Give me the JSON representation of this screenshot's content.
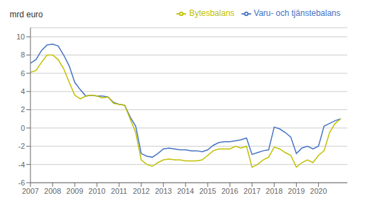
{
  "chart_data": {
    "type": "line",
    "ylabel": "mrd euro",
    "x": [
      2007.0,
      2007.25,
      2007.5,
      2007.75,
      2008.0,
      2008.25,
      2008.5,
      2008.75,
      2009.0,
      2009.25,
      2009.5,
      2009.75,
      2010.0,
      2010.25,
      2010.5,
      2010.75,
      2011.0,
      2011.25,
      2011.5,
      2011.75,
      2012.0,
      2012.25,
      2012.5,
      2012.75,
      2013.0,
      2013.25,
      2013.5,
      2013.75,
      2014.0,
      2014.25,
      2014.5,
      2014.75,
      2015.0,
      2015.25,
      2015.5,
      2015.75,
      2016.0,
      2016.25,
      2016.5,
      2016.75,
      2017.0,
      2017.25,
      2017.5,
      2017.75,
      2018.0,
      2018.25,
      2018.5,
      2018.75,
      2019.0,
      2019.25,
      2019.5,
      2019.75,
      2020.0,
      2020.25,
      2020.5,
      2020.75,
      2021.0
    ],
    "series": [
      {
        "name": "Varu- och tjänstebalans",
        "color": "#4472C4",
        "values": [
          7.1,
          7.5,
          8.5,
          9.1,
          9.2,
          9.0,
          8.0,
          6.8,
          5.0,
          4.2,
          3.5,
          3.6,
          3.5,
          3.5,
          3.4,
          2.8,
          2.6,
          2.5,
          1.2,
          0.2,
          -2.8,
          -3.1,
          -3.2,
          -2.8,
          -2.3,
          -2.2,
          -2.3,
          -2.4,
          -2.4,
          -2.5,
          -2.5,
          -2.6,
          -2.4,
          -1.9,
          -1.6,
          -1.5,
          -1.5,
          -1.4,
          -1.3,
          -1.1,
          -2.9,
          -2.7,
          -2.5,
          -2.4,
          0.1,
          -0.1,
          -0.5,
          -1.0,
          -2.8,
          -2.2,
          -2.0,
          -2.3,
          -2.0,
          0.2,
          0.5,
          0.8,
          1.0
        ]
      },
      {
        "name": "Bytesbalans",
        "color": "#BFBF00",
        "values": [
          6.1,
          6.3,
          7.2,
          8.0,
          8.0,
          7.5,
          6.5,
          5.0,
          3.6,
          3.2,
          3.5,
          3.6,
          3.5,
          3.3,
          3.4,
          2.7,
          2.6,
          2.5,
          1.0,
          -0.5,
          -3.5,
          -4.0,
          -4.2,
          -3.8,
          -3.5,
          -3.4,
          -3.5,
          -3.5,
          -3.6,
          -3.6,
          -3.6,
          -3.5,
          -3.0,
          -2.5,
          -2.3,
          -2.3,
          -2.3,
          -2.0,
          -2.2,
          -2.0,
          -4.3,
          -4.0,
          -3.5,
          -3.2,
          -2.1,
          -2.3,
          -2.7,
          -3.0,
          -4.3,
          -3.8,
          -3.5,
          -3.8,
          -3.0,
          -2.5,
          -0.5,
          0.5,
          1.0
        ]
      }
    ],
    "xlim": [
      2007.0,
      2021.3
    ],
    "ylim": [
      -6,
      11
    ],
    "xticks": [
      2007,
      2008,
      2009,
      2010,
      2011,
      2012,
      2013,
      2014,
      2015,
      2016,
      2017,
      2018,
      2019,
      2020
    ],
    "yticks": [
      -6,
      -4,
      -2,
      0,
      2,
      4,
      6,
      8,
      10
    ],
    "grid": true,
    "legend": "upper right"
  }
}
